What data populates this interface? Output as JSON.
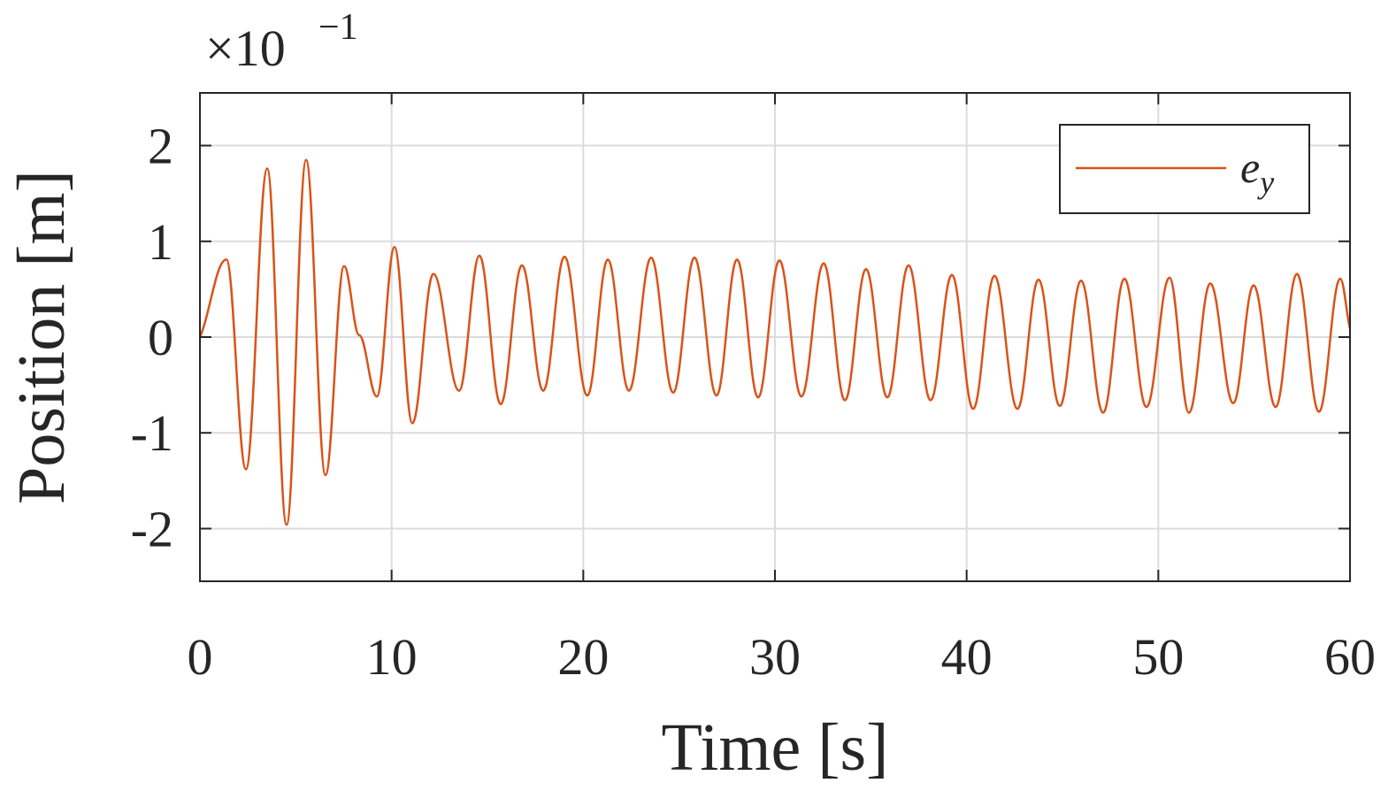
{
  "chart_data": {
    "type": "line",
    "xlabel": "Time [s]",
    "ylabel": "Position [m]",
    "y_multiplier": "×10",
    "y_multiplier_exponent": "−1",
    "xlim": [
      0,
      60
    ],
    "ylim": [
      -2.55,
      2.55
    ],
    "xticks": [
      0,
      10,
      20,
      30,
      40,
      50,
      60
    ],
    "yticks": [
      -2,
      -1,
      0,
      1,
      2
    ],
    "grid": true,
    "legend": "upper right",
    "x": [
      0,
      1.38,
      2.4,
      3.51,
      4.52,
      5.54,
      6.55,
      7.52,
      8.31,
      9.23,
      10.15,
      11.08,
      12.18,
      13.52,
      14.58,
      15.69,
      16.8,
      17.91,
      19.02,
      20.21,
      21.28,
      22.38,
      23.54,
      24.69,
      25.8,
      26.95,
      28.02,
      29.12,
      30.23,
      31.38,
      32.54,
      33.65,
      34.75,
      35.86,
      36.97,
      38.12,
      39.23,
      40.34,
      41.45,
      42.65,
      43.75,
      44.86,
      45.97,
      47.12,
      48.23,
      49.38,
      50.58,
      51.6,
      52.71,
      53.91,
      54.97,
      56.12,
      57.23,
      58.38,
      59.49,
      60
    ],
    "series": [
      {
        "name": "e_y",
        "color": "#d95319",
        "values": [
          0,
          0.81,
          -1.38,
          1.76,
          -1.96,
          1.85,
          -1.44,
          0.74,
          0.02,
          -0.62,
          0.94,
          -0.9,
          0.66,
          -0.56,
          0.85,
          -0.7,
          0.75,
          -0.56,
          0.84,
          -0.61,
          0.81,
          -0.56,
          0.83,
          -0.58,
          0.83,
          -0.61,
          0.81,
          -0.63,
          0.8,
          -0.62,
          0.77,
          -0.66,
          0.71,
          -0.63,
          0.75,
          -0.66,
          0.65,
          -0.75,
          0.64,
          -0.75,
          0.6,
          -0.72,
          0.59,
          -0.79,
          0.61,
          -0.73,
          0.62,
          -0.79,
          0.56,
          -0.69,
          0.54,
          -0.73,
          0.66,
          -0.78,
          0.61,
          0.09
        ]
      }
    ]
  }
}
